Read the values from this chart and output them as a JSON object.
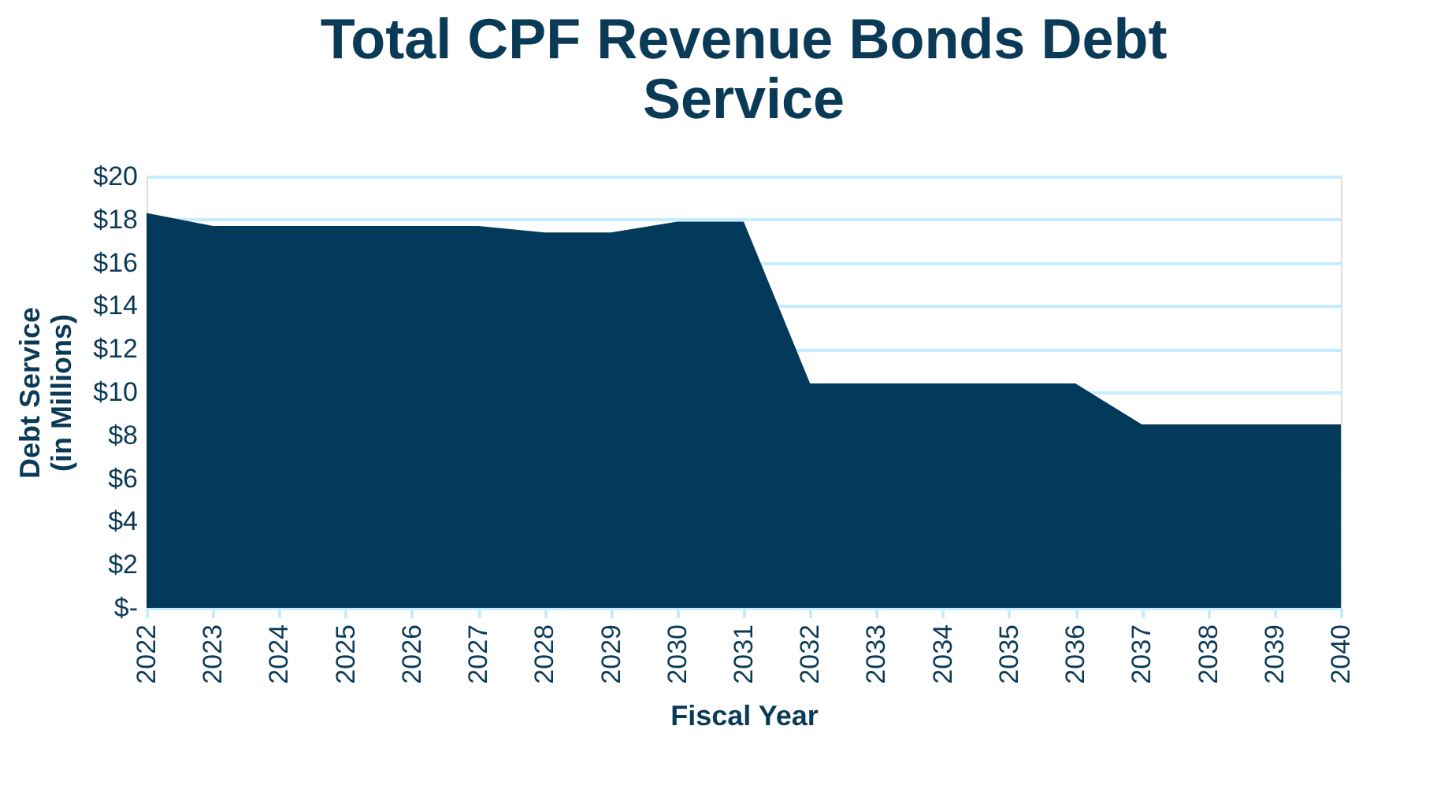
{
  "chart_data": {
    "type": "area",
    "title": "Total CPF Revenue Bonds Debt Service",
    "xlabel": "Fiscal Year",
    "ylabel": "Debt Service (in Millions)",
    "categories": [
      "2022",
      "2023",
      "2024",
      "2025",
      "2026",
      "2027",
      "2028",
      "2029",
      "2030",
      "2031",
      "2032",
      "2033",
      "2034",
      "2035",
      "2036",
      "2037",
      "2038",
      "2039",
      "2040"
    ],
    "series": [
      {
        "color": "#03395a",
        "values": [
          18.3,
          17.7,
          17.7,
          17.7,
          17.7,
          17.7,
          17.4,
          17.4,
          17.9,
          17.9,
          10.4,
          10.4,
          10.4,
          10.4,
          10.4,
          8.5,
          8.5,
          8.5,
          8.5
        ]
      }
    ],
    "ylim": [
      0,
      20
    ],
    "yticks": [
      {
        "value": 0,
        "label": "$-"
      },
      {
        "value": 2,
        "label": "$2"
      },
      {
        "value": 4,
        "label": "$4"
      },
      {
        "value": 6,
        "label": "$6"
      },
      {
        "value": 8,
        "label": "$8"
      },
      {
        "value": 10,
        "label": "$10"
      },
      {
        "value": 12,
        "label": "$12"
      },
      {
        "value": 14,
        "label": "$14"
      },
      {
        "value": 16,
        "label": "$16"
      },
      {
        "value": 18,
        "label": "$18"
      },
      {
        "value": 20,
        "label": "$20"
      }
    ],
    "grid": "y"
  }
}
